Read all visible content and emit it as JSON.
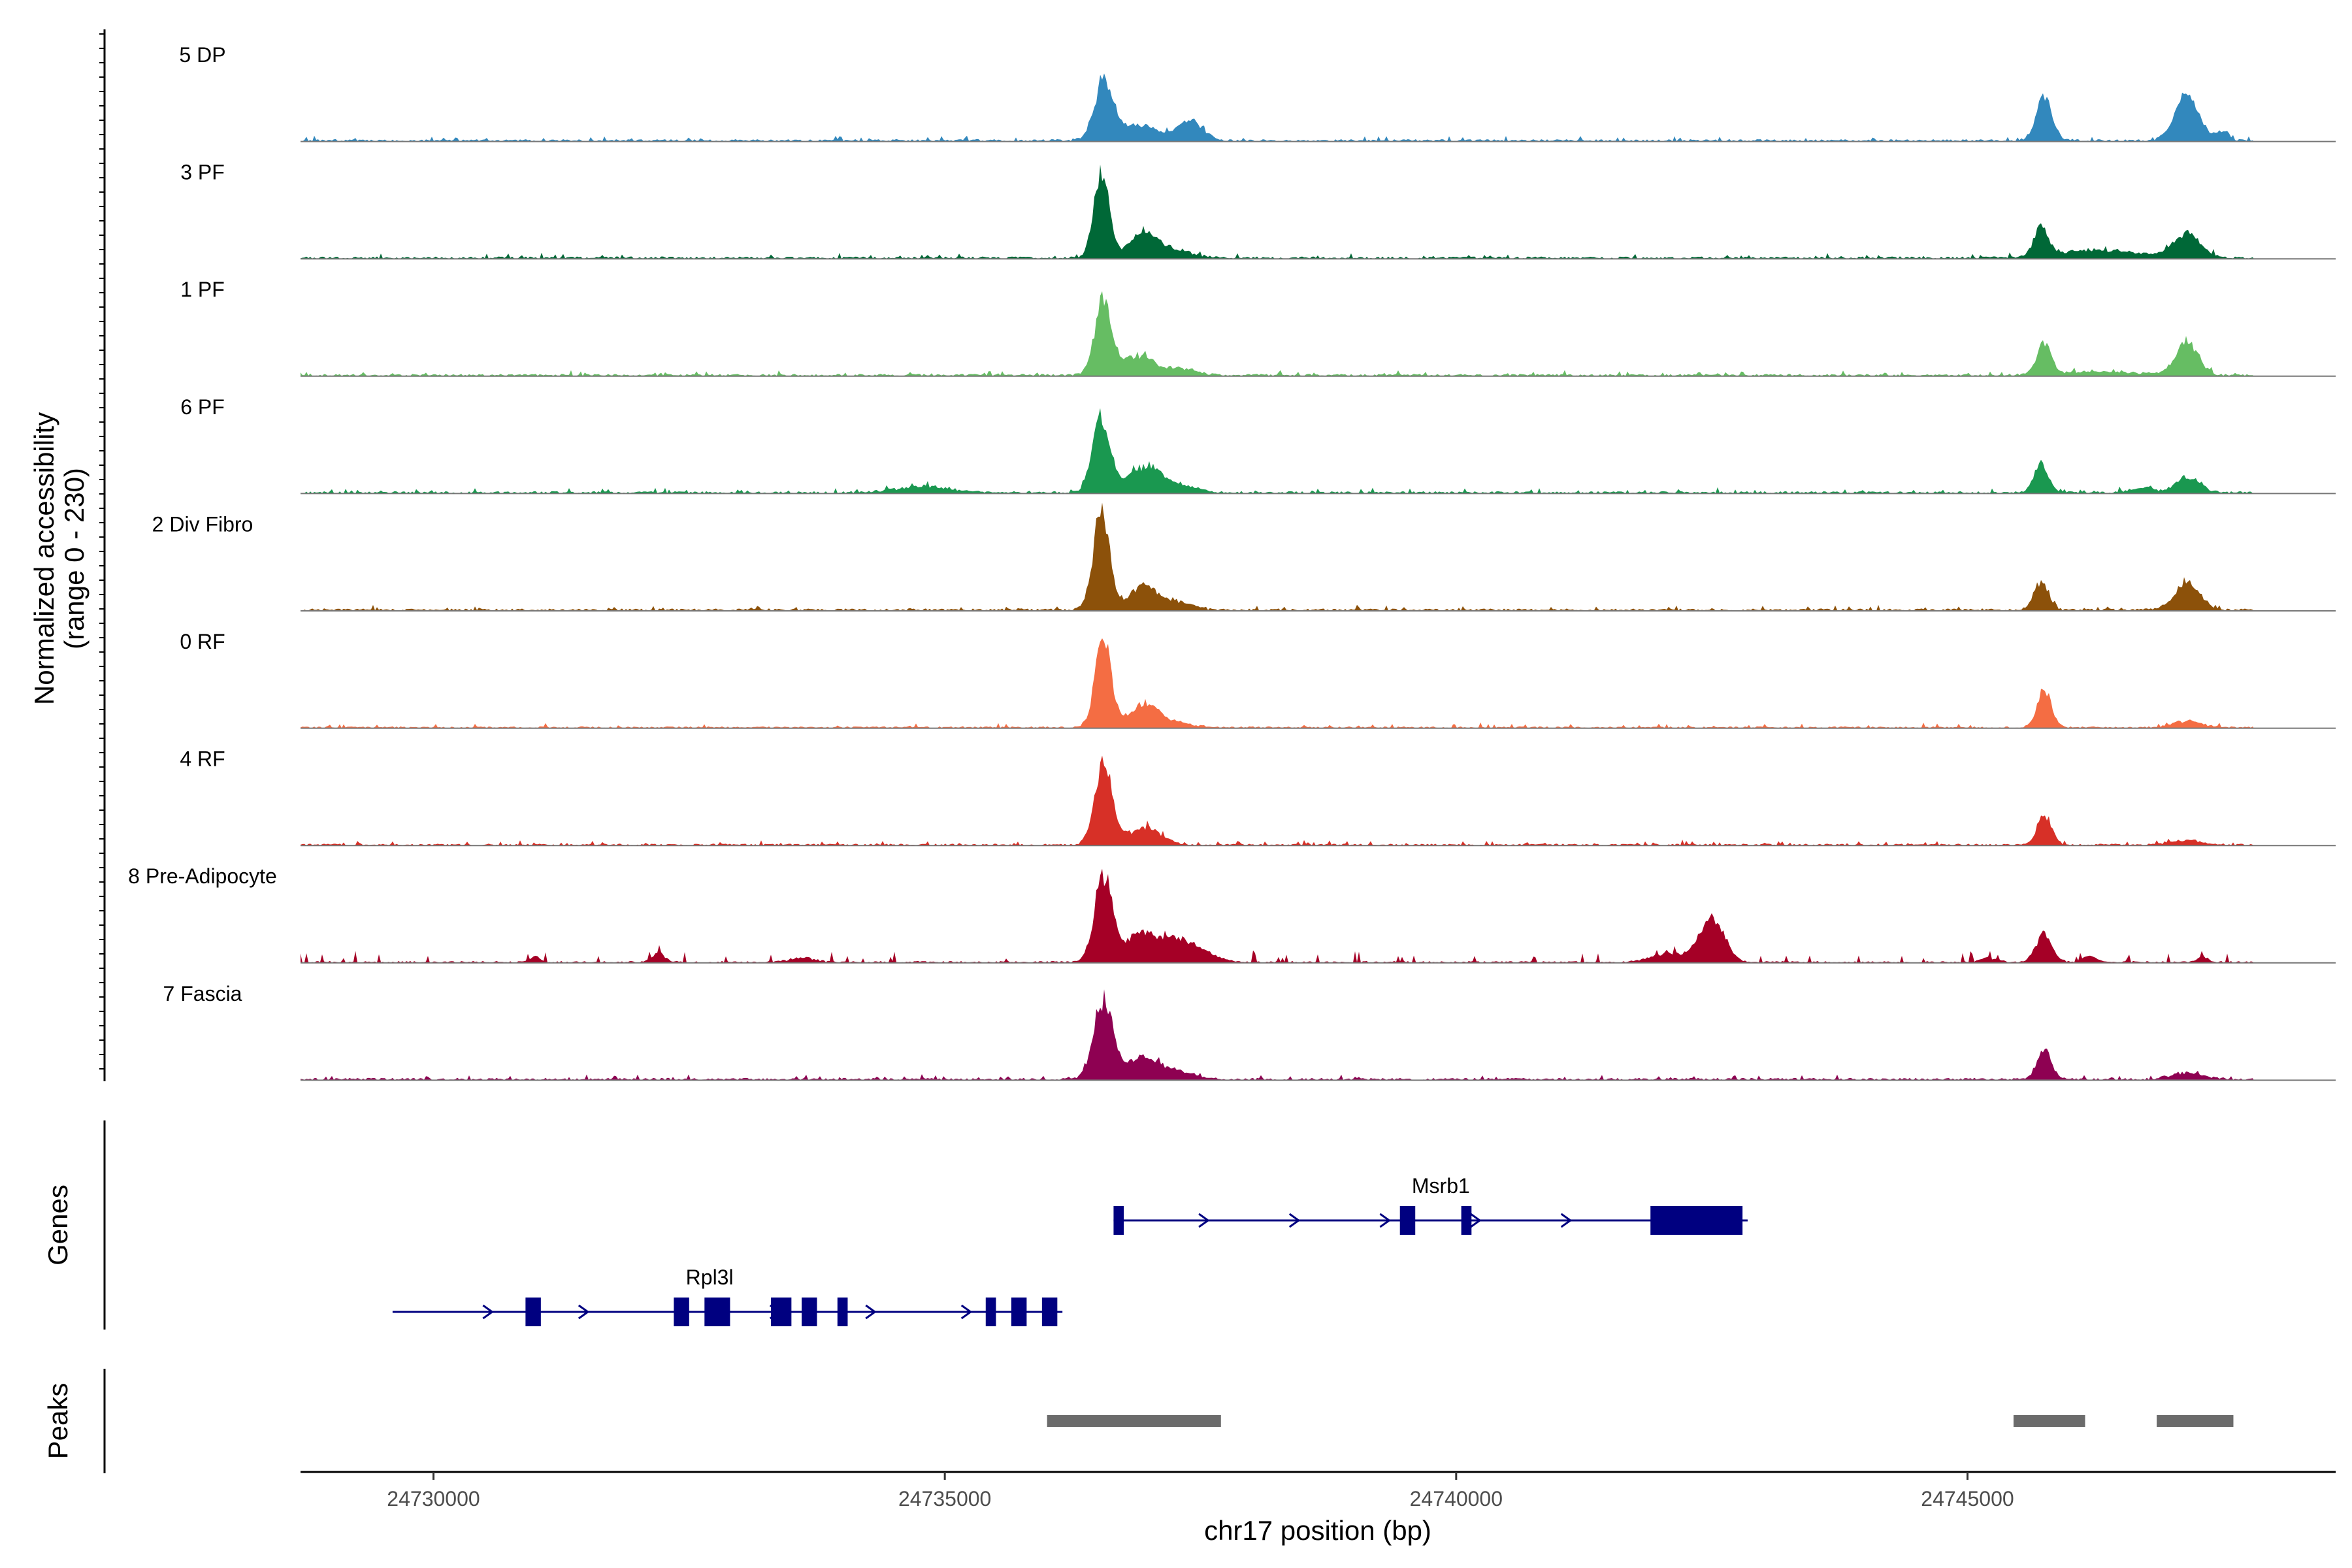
{
  "chart_data": {
    "type": "area",
    "title": "",
    "ylabel": "Normalized accessibility",
    "ylabel_range": "(range 0 - 230)",
    "y_range": [
      0,
      230
    ],
    "xlabel": "chr17 position (bp)",
    "x_range": [
      24728700,
      24748600
    ],
    "data_end": 24747800,
    "x_ticks": [
      24730000,
      24735000,
      24740000,
      24745000
    ],
    "x_tick_labels": [
      "24730000",
      "24735000",
      "24740000",
      "24745000"
    ],
    "tracks": [
      {
        "name": "5 DP",
        "color": "#3288BD",
        "baseline": 5,
        "noise": 3,
        "peaks": [
          [
            24736550,
            135,
            90
          ],
          [
            24736900,
            35,
            180
          ],
          [
            24737400,
            45,
            120
          ],
          [
            24745750,
            95,
            80
          ],
          [
            24747150,
            105,
            120
          ],
          [
            24747500,
            20,
            60
          ]
        ]
      },
      {
        "name": "3 PF",
        "color": "#006837",
        "baseline": 5,
        "noise": 3,
        "peaks": [
          [
            24736530,
            200,
            75
          ],
          [
            24736950,
            60,
            140
          ],
          [
            24737300,
            15,
            150
          ],
          [
            24745720,
            65,
            70
          ],
          [
            24746300,
            18,
            400
          ],
          [
            24747150,
            55,
            130
          ]
        ]
      },
      {
        "name": "1 PF",
        "color": "#66BD63",
        "baseline": 5,
        "noise": 3,
        "peaks": [
          [
            24736550,
            170,
            85
          ],
          [
            24736900,
            45,
            140
          ],
          [
            24737300,
            15,
            160
          ],
          [
            24745750,
            70,
            70
          ],
          [
            24747150,
            75,
            110
          ],
          [
            24746300,
            8,
            400
          ]
        ]
      },
      {
        "name": "6 PF",
        "color": "#1A9850",
        "baseline": 5,
        "noise": 3,
        "peaks": [
          [
            24736530,
            165,
            85
          ],
          [
            24736950,
            60,
            160
          ],
          [
            24737300,
            15,
            160
          ],
          [
            24734800,
            15,
            250
          ],
          [
            24745720,
            65,
            70
          ],
          [
            24747150,
            35,
            120
          ],
          [
            24746700,
            10,
            120
          ]
        ]
      },
      {
        "name": "2 Div Fibro",
        "color": "#8C510A",
        "baseline": 5,
        "noise": 3,
        "peaks": [
          [
            24736530,
            220,
            80
          ],
          [
            24736950,
            55,
            140
          ],
          [
            24737300,
            15,
            140
          ],
          [
            24745720,
            65,
            70
          ],
          [
            24747150,
            65,
            120
          ]
        ]
      },
      {
        "name": "0 RF",
        "color": "#F46D43",
        "baseline": 4,
        "noise": 3,
        "peaks": [
          [
            24736550,
            200,
            80
          ],
          [
            24736950,
            55,
            140
          ],
          [
            24737300,
            10,
            140
          ],
          [
            24745750,
            85,
            70
          ],
          [
            24747150,
            15,
            140
          ]
        ]
      },
      {
        "name": "4 RF",
        "color": "#D73027",
        "baseline": 4,
        "noise": 3,
        "peaks": [
          [
            24736550,
            190,
            85
          ],
          [
            24736950,
            40,
            160
          ],
          [
            24745750,
            70,
            70
          ],
          [
            24747150,
            10,
            160
          ]
        ]
      },
      {
        "name": "8 Pre-Adipocyte",
        "color": "#A50026",
        "baseline": 4,
        "noise": 8,
        "peaks": [
          [
            24736550,
            195,
            85
          ],
          [
            24736900,
            55,
            160
          ],
          [
            24737300,
            50,
            220
          ],
          [
            24742500,
            100,
            120
          ],
          [
            24742100,
            20,
            180
          ],
          [
            24745750,
            65,
            80
          ],
          [
            24731000,
            15,
            40
          ],
          [
            24732200,
            20,
            60
          ],
          [
            24733600,
            10,
            120
          ],
          [
            24745200,
            10,
            80
          ],
          [
            24746200,
            15,
            60
          ],
          [
            24747300,
            15,
            40
          ]
        ]
      },
      {
        "name": "7 Fascia",
        "color": "#8E0152",
        "baseline": 5,
        "noise": 3,
        "peaks": [
          [
            24736550,
            180,
            95
          ],
          [
            24736950,
            50,
            160
          ],
          [
            24737300,
            15,
            160
          ],
          [
            24745750,
            70,
            70
          ],
          [
            24747150,
            15,
            160
          ]
        ]
      }
    ],
    "genes": [
      {
        "name": "Msrb1",
        "strand": "+",
        "start": 24736650,
        "end": 24742850,
        "row": 0,
        "exons": [
          [
            24736650,
            24736750
          ],
          [
            24739450,
            24739600
          ],
          [
            24740050,
            24740150
          ],
          [
            24741900,
            24742800
          ]
        ]
      },
      {
        "name": "Rpl3l",
        "strand": "+",
        "start": 24729600,
        "end": 24736150,
        "row": 1,
        "exons": [
          [
            24730900,
            24731050
          ],
          [
            24732350,
            24732500
          ],
          [
            24732650,
            24732900
          ],
          [
            24733300,
            24733500
          ],
          [
            24733600,
            24733750
          ],
          [
            24733950,
            24734050
          ],
          [
            24735400,
            24735500
          ],
          [
            24735650,
            24735800
          ],
          [
            24735950,
            24736100
          ]
        ]
      }
    ],
    "panel_labels": {
      "genes": "Genes",
      "peaks": "Peaks"
    },
    "peaks": [
      [
        24736000,
        24737700
      ],
      [
        24745450,
        24746150
      ],
      [
        24746850,
        24747600
      ]
    ],
    "colors": {
      "gene": "#000080",
      "peak": "#6b6b6b",
      "axis": "#000000",
      "baseline": "#777777"
    }
  }
}
